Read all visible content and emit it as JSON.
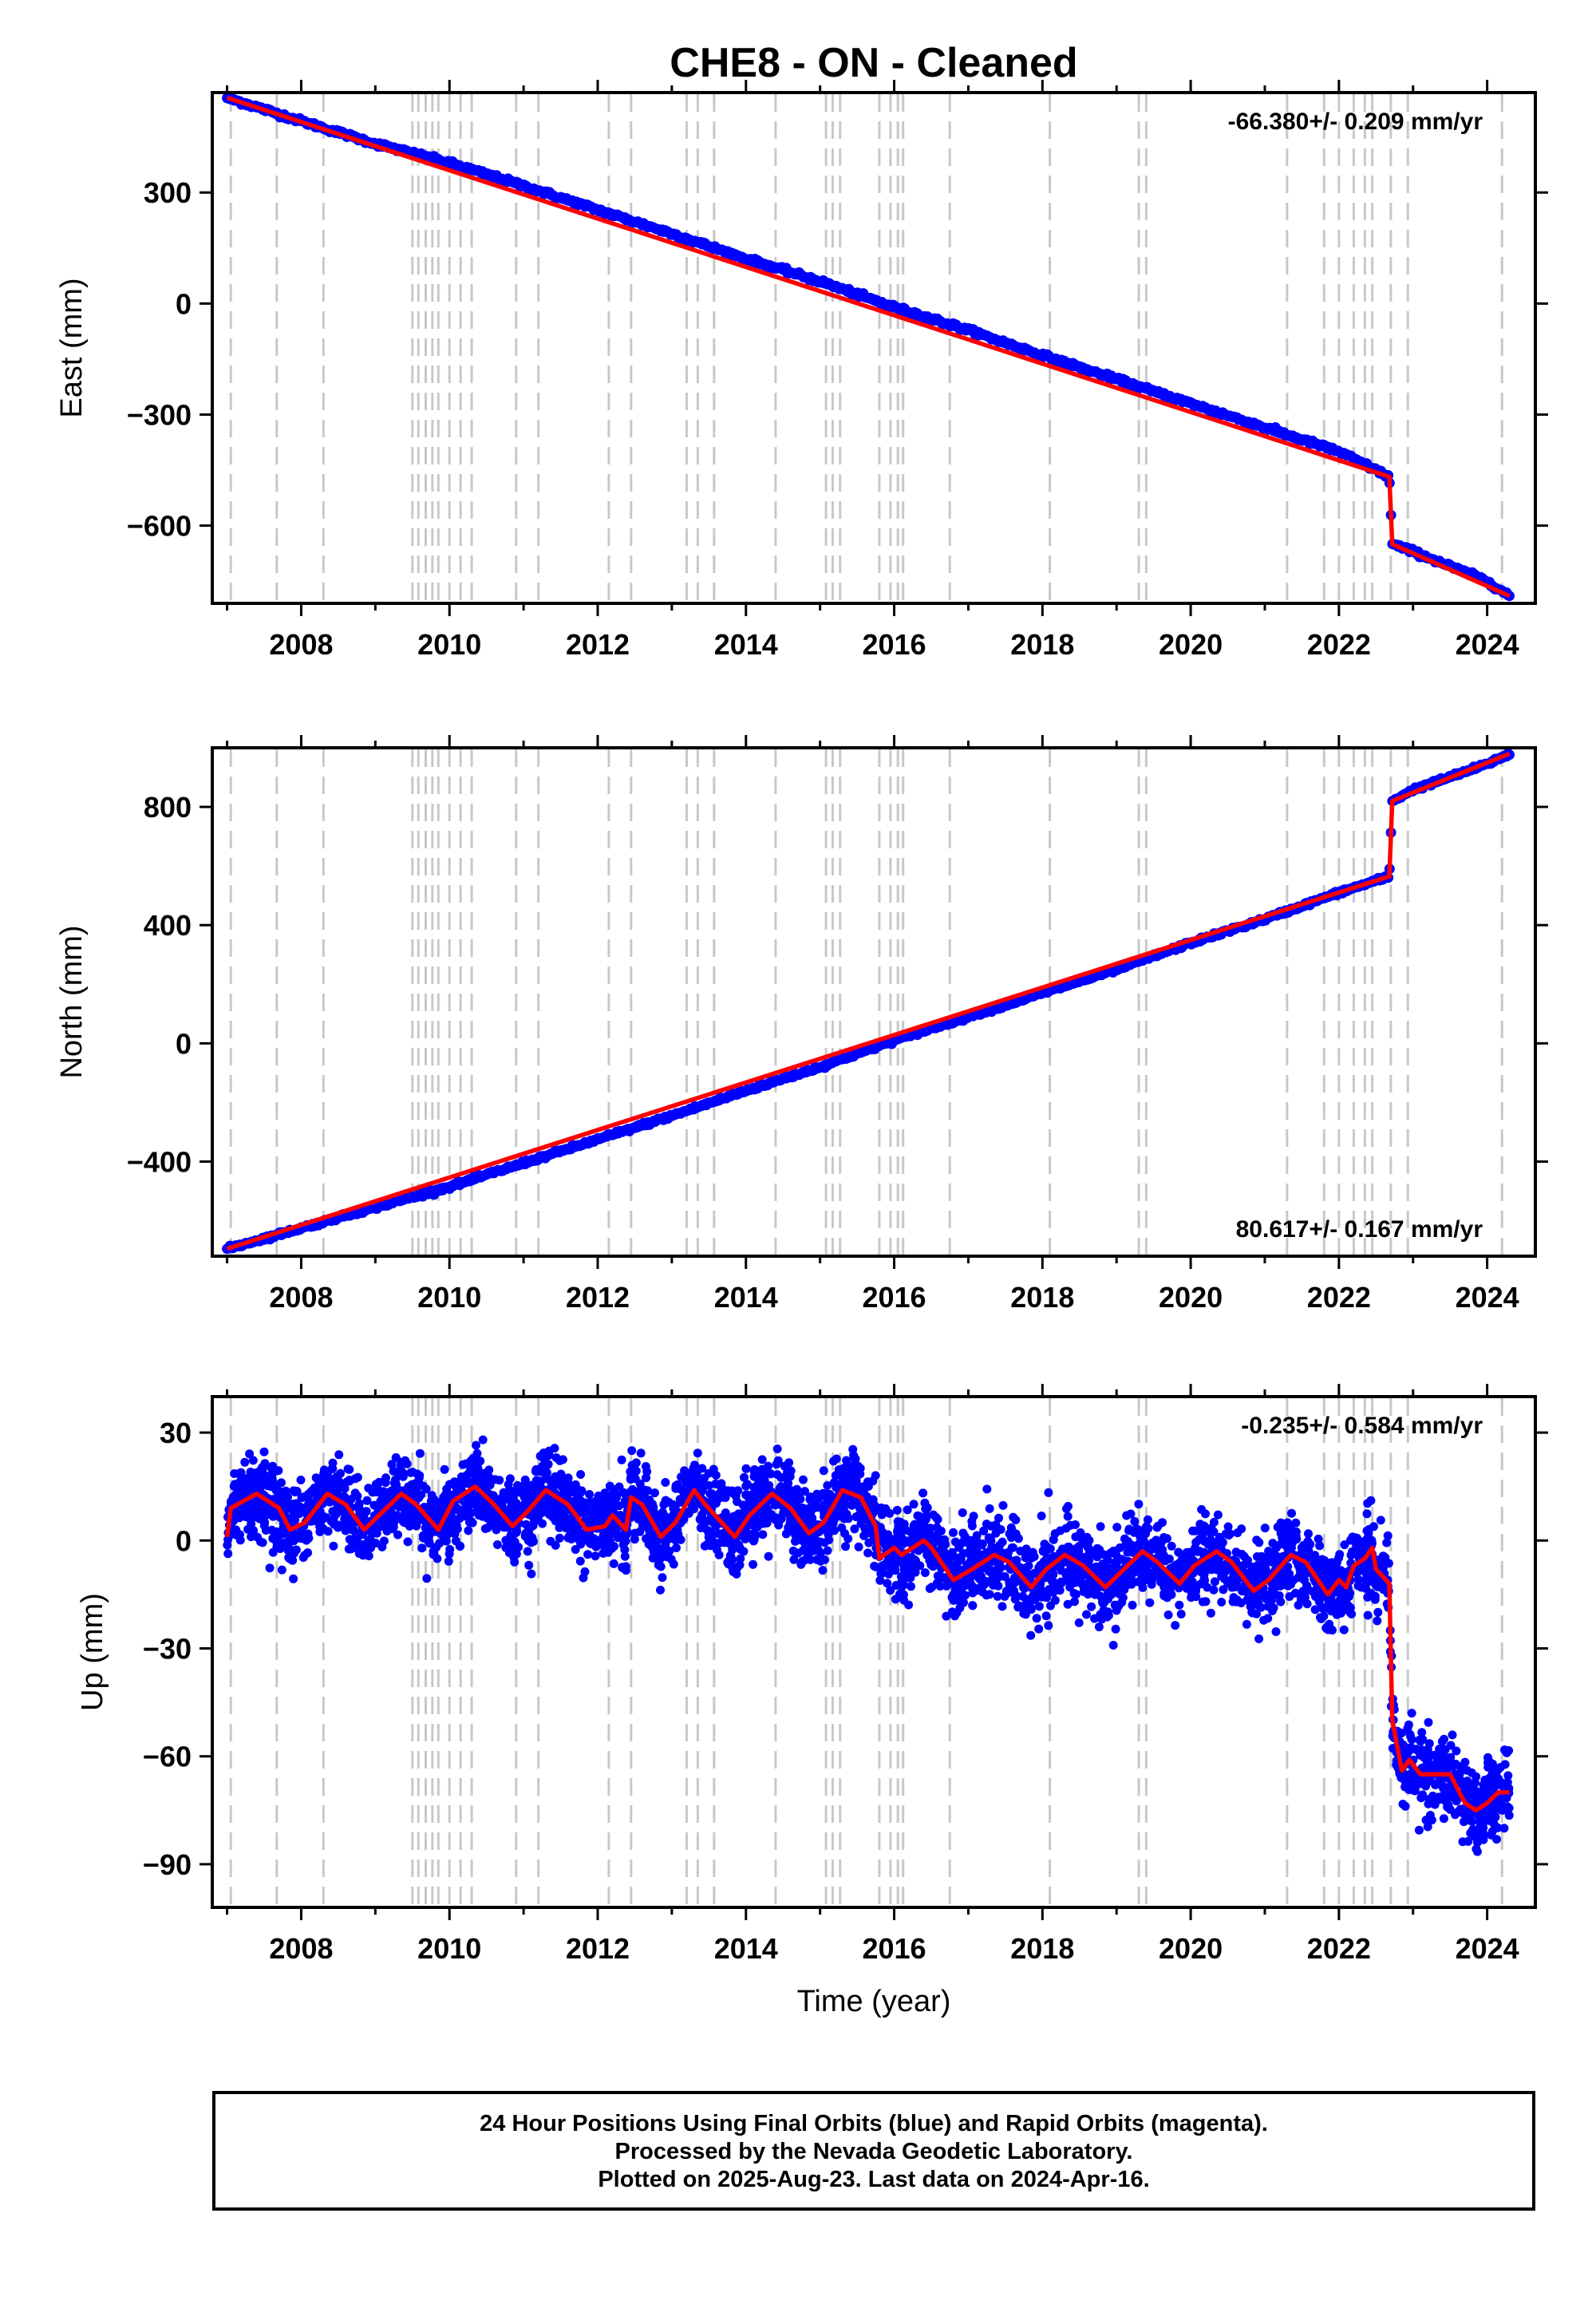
{
  "title": "CHE8  - ON - Cleaned",
  "footer": {
    "line1": "24 Hour Positions Using Final Orbits (blue) and Rapid Orbits (magenta).",
    "line2": "Processed by the Nevada Geodetic Laboratory.",
    "line3": "Plotted on 2025-Aug-23. Last data on 2024-Apr-16."
  },
  "chart_data": [
    {
      "type": "scatter",
      "panel": "east",
      "ylabel": "East (mm)",
      "xlabel": "",
      "rate_label": "-66.380+/- 0.209 mm/yr",
      "rate_position": "top-right",
      "xlim": [
        2006.8,
        2024.65
      ],
      "ylim": [
        -810,
        570
      ],
      "xticks": [
        2008,
        2010,
        2012,
        2014,
        2016,
        2018,
        2020,
        2022,
        2024
      ],
      "yticks": [
        300,
        0,
        -300,
        -600
      ],
      "ytick_labels": [
        "300",
        "0",
        "−300",
        "−600"
      ],
      "series": [
        {
          "name": "Final Orbits",
          "color": "#0000ff",
          "points": [
            [
              2007.0,
              556
            ],
            [
              2008.0,
              493
            ],
            [
              2009.0,
              432
            ],
            [
              2010.0,
              380
            ],
            [
              2011.0,
              318
            ],
            [
              2012.0,
              253
            ],
            [
              2013.0,
              189
            ],
            [
              2014.0,
              121
            ],
            [
              2015.0,
              60
            ],
            [
              2016.0,
              -10
            ],
            [
              2017.0,
              -72
            ],
            [
              2018.0,
              -140
            ],
            [
              2019.0,
              -205
            ],
            [
              2020.0,
              -270
            ],
            [
              2021.0,
              -335
            ],
            [
              2022.0,
              -400
            ],
            [
              2022.68,
              -468
            ],
            [
              2022.72,
              -650
            ],
            [
              2023.0,
              -670
            ],
            [
              2024.0,
              -750
            ],
            [
              2024.3,
              -790
            ]
          ]
        },
        {
          "name": "Model",
          "color": "#ff0000",
          "points": [
            [
              2007.0,
              556
            ],
            [
              2022.68,
              -468
            ],
            [
              2022.72,
              -650
            ],
            [
              2024.3,
              -790
            ]
          ]
        }
      ]
    },
    {
      "type": "scatter",
      "panel": "north",
      "ylabel": "North (mm)",
      "xlabel": "",
      "rate_label": "80.617+/- 0.167 mm/yr",
      "rate_position": "bottom-right",
      "xlim": [
        2006.8,
        2024.65
      ],
      "ylim": [
        -720,
        1000
      ],
      "xticks": [
        2008,
        2010,
        2012,
        2014,
        2016,
        2018,
        2020,
        2022,
        2024
      ],
      "yticks": [
        800,
        400,
        0,
        -400
      ],
      "ytick_labels": [
        "800",
        "400",
        "0",
        "−400"
      ],
      "series": [
        {
          "name": "Final Orbits",
          "color": "#0000ff",
          "points": [
            [
              2007.0,
              -695
            ],
            [
              2008.0,
              -625
            ],
            [
              2009.0,
              -555
            ],
            [
              2010.0,
              -485
            ],
            [
              2011.0,
              -405
            ],
            [
              2012.0,
              -325
            ],
            [
              2013.0,
              -245
            ],
            [
              2014.0,
              -160
            ],
            [
              2015.0,
              -80
            ],
            [
              2016.0,
              10
            ],
            [
              2017.0,
              90
            ],
            [
              2018.0,
              170
            ],
            [
              2019.0,
              250
            ],
            [
              2020.0,
              340
            ],
            [
              2021.0,
              420
            ],
            [
              2022.0,
              510
            ],
            [
              2022.68,
              565
            ],
            [
              2022.72,
              820
            ],
            [
              2023.0,
              858
            ],
            [
              2024.0,
              945
            ],
            [
              2024.3,
              980
            ]
          ]
        },
        {
          "name": "Model",
          "color": "#ff0000",
          "points": [
            [
              2007.0,
              -695
            ],
            [
              2022.68,
              565
            ],
            [
              2022.72,
              820
            ],
            [
              2024.3,
              980
            ]
          ]
        }
      ]
    },
    {
      "type": "scatter",
      "panel": "up",
      "ylabel": "Up (mm)",
      "xlabel": "Time (year)",
      "rate_label": "-0.235+/- 0.584 mm/yr",
      "rate_position": "top-right",
      "xlim": [
        2006.8,
        2024.65
      ],
      "ylim": [
        -102,
        40
      ],
      "xticks": [
        2008,
        2010,
        2012,
        2014,
        2016,
        2018,
        2020,
        2022,
        2024
      ],
      "yticks": [
        30,
        0,
        -30,
        -60,
        -90
      ],
      "ytick_labels": [
        "30",
        "0",
        "−30",
        "−60",
        "−90"
      ],
      "scatter_std": 5.5,
      "series": [
        {
          "name": "Model",
          "color": "#ff0000",
          "points": [
            [
              2007.0,
              1
            ],
            [
              2007.05,
              9
            ],
            [
              2007.4,
              13
            ],
            [
              2007.7,
              9
            ],
            [
              2007.85,
              3
            ],
            [
              2008.05,
              5
            ],
            [
              2008.35,
              13
            ],
            [
              2008.6,
              10
            ],
            [
              2008.85,
              3
            ],
            [
              2009.05,
              7
            ],
            [
              2009.35,
              13
            ],
            [
              2009.55,
              10
            ],
            [
              2009.85,
              3
            ],
            [
              2010.05,
              11
            ],
            [
              2010.35,
              15
            ],
            [
              2010.6,
              10
            ],
            [
              2010.85,
              4
            ],
            [
              2011.05,
              8
            ],
            [
              2011.3,
              14
            ],
            [
              2011.6,
              10
            ],
            [
              2011.85,
              3
            ],
            [
              2012.1,
              4
            ],
            [
              2012.2,
              7
            ],
            [
              2012.38,
              3
            ],
            [
              2012.45,
              12
            ],
            [
              2012.6,
              10
            ],
            [
              2012.85,
              1
            ],
            [
              2013.05,
              5
            ],
            [
              2013.3,
              14
            ],
            [
              2013.45,
              10
            ],
            [
              2013.85,
              1
            ],
            [
              2014.05,
              7
            ],
            [
              2014.35,
              13
            ],
            [
              2014.6,
              9
            ],
            [
              2014.85,
              2
            ],
            [
              2015.05,
              5
            ],
            [
              2015.3,
              14
            ],
            [
              2015.55,
              12
            ],
            [
              2015.75,
              4
            ],
            [
              2015.8,
              -5
            ],
            [
              2016.0,
              -2
            ],
            [
              2016.1,
              -4
            ],
            [
              2016.4,
              0
            ],
            [
              2016.5,
              -2
            ],
            [
              2016.8,
              -11
            ],
            [
              2017.05,
              -8
            ],
            [
              2017.35,
              -4
            ],
            [
              2017.55,
              -6
            ],
            [
              2017.85,
              -13
            ],
            [
              2018.05,
              -8
            ],
            [
              2018.3,
              -4
            ],
            [
              2018.55,
              -7
            ],
            [
              2018.85,
              -13
            ],
            [
              2019.05,
              -9
            ],
            [
              2019.35,
              -3
            ],
            [
              2019.55,
              -6
            ],
            [
              2019.85,
              -12
            ],
            [
              2020.05,
              -7
            ],
            [
              2020.35,
              -3
            ],
            [
              2020.55,
              -6
            ],
            [
              2020.85,
              -14
            ],
            [
              2021.05,
              -11
            ],
            [
              2021.35,
              -4
            ],
            [
              2021.55,
              -6
            ],
            [
              2021.85,
              -15
            ],
            [
              2022.0,
              -11
            ],
            [
              2022.1,
              -13
            ],
            [
              2022.2,
              -7
            ],
            [
              2022.35,
              -5
            ],
            [
              2022.45,
              -2
            ],
            [
              2022.5,
              -8
            ],
            [
              2022.68,
              -12
            ],
            [
              2022.72,
              -50
            ],
            [
              2022.85,
              -64
            ],
            [
              2022.95,
              -61
            ],
            [
              2023.1,
              -65
            ],
            [
              2023.5,
              -65
            ],
            [
              2023.7,
              -73
            ],
            [
              2023.85,
              -75
            ],
            [
              2024.0,
              -73
            ],
            [
              2024.15,
              -70
            ],
            [
              2024.3,
              -70
            ]
          ]
        }
      ]
    }
  ],
  "event_lines_years": [
    2007.05,
    2007.67,
    2008.3,
    2009.5,
    2009.58,
    2009.68,
    2009.77,
    2009.85,
    2010.0,
    2010.15,
    2010.3,
    2010.9,
    2011.2,
    2012.15,
    2012.45,
    2013.2,
    2013.35,
    2013.57,
    2014.4,
    2015.08,
    2015.17,
    2015.27,
    2015.8,
    2015.95,
    2016.05,
    2016.12,
    2016.75,
    2018.1,
    2019.3,
    2019.4,
    2021.3,
    2021.8,
    2022.0,
    2022.2,
    2022.35,
    2022.45,
    2022.7,
    2022.93,
    2024.2
  ],
  "colors": {
    "final_orbits": "#0000ff",
    "model": "#ff0000",
    "event_lines": "#c8c8c8"
  }
}
